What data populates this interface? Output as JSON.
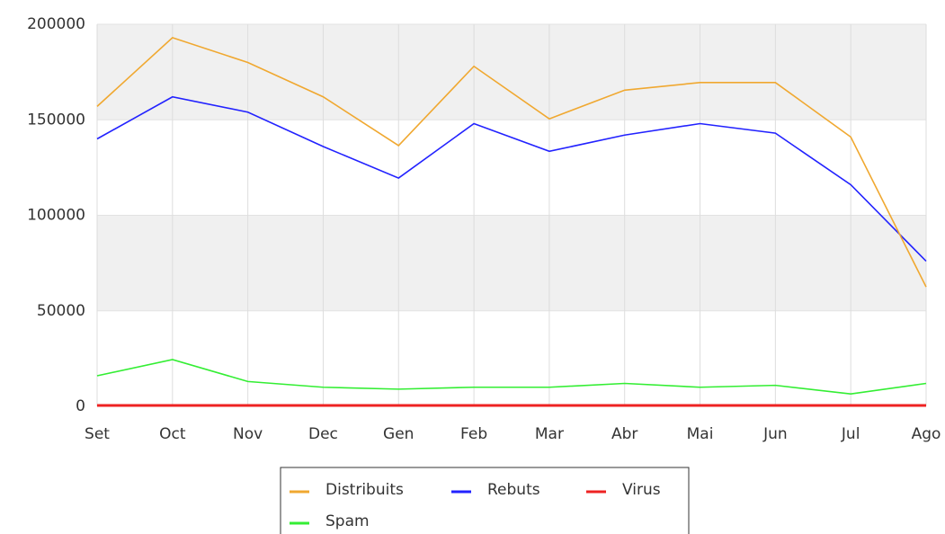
{
  "chart_data": {
    "type": "line",
    "categories": [
      "Set",
      "Oct",
      "Nov",
      "Dec",
      "Gen",
      "Feb",
      "Mar",
      "Abr",
      "Mai",
      "Jun",
      "Jul",
      "Ago"
    ],
    "series": [
      {
        "name": "Distribuits",
        "color": "#f0a830",
        "values": [
          157000,
          193000,
          180000,
          162000,
          136500,
          178000,
          150500,
          165500,
          169500,
          169500,
          141000,
          62500
        ]
      },
      {
        "name": "Rebuts",
        "color": "#2222ff",
        "values": [
          140000,
          162000,
          154000,
          136000,
          119500,
          148000,
          133500,
          142000,
          148000,
          143000,
          116000,
          76000
        ]
      },
      {
        "name": "Virus",
        "color": "#ee2222",
        "values": [
          500,
          500,
          500,
          500,
          500,
          500,
          500,
          500,
          500,
          500,
          500,
          500
        ]
      },
      {
        "name": "Spam",
        "color": "#33ee33",
        "values": [
          16000,
          24500,
          13000,
          10000,
          9000,
          10000,
          10000,
          12000,
          10000,
          11000,
          6500,
          12000
        ]
      }
    ],
    "ylim": [
      0,
      200000
    ],
    "yticks": [
      0,
      50000,
      100000,
      150000,
      200000
    ],
    "grid": true
  }
}
